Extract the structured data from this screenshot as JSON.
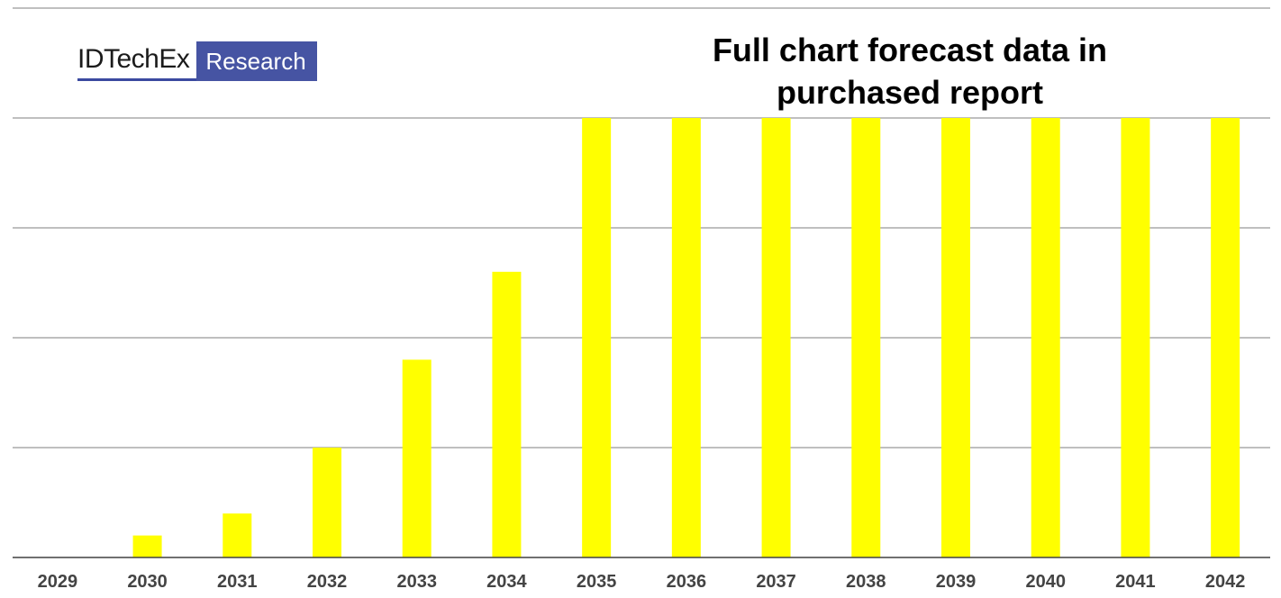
{
  "logo": {
    "wordmark": "IDTechEx",
    "tag": "Research",
    "colors": {
      "box": "#4654a3",
      "underline": "#3b4aa0"
    }
  },
  "title_lines": [
    "Full chart forecast data in",
    "purchased report"
  ],
  "chart_data": {
    "type": "bar",
    "title": "Full chart forecast data in purchased report",
    "categories": [
      "2029",
      "2030",
      "2031",
      "2032",
      "2033",
      "2034",
      "2035",
      "2036",
      "2037",
      "2038",
      "2039",
      "2040",
      "2041",
      "2042"
    ],
    "values": [
      0,
      0.2,
      0.4,
      1.0,
      1.8,
      2.6,
      4.0,
      4.0,
      4.0,
      4.0,
      4.0,
      4.0,
      4.0,
      4.0
    ],
    "ylim": [
      0,
      4
    ],
    "grid": true,
    "bar_color": "#ffff00",
    "xlabel": "",
    "ylabel": ""
  }
}
